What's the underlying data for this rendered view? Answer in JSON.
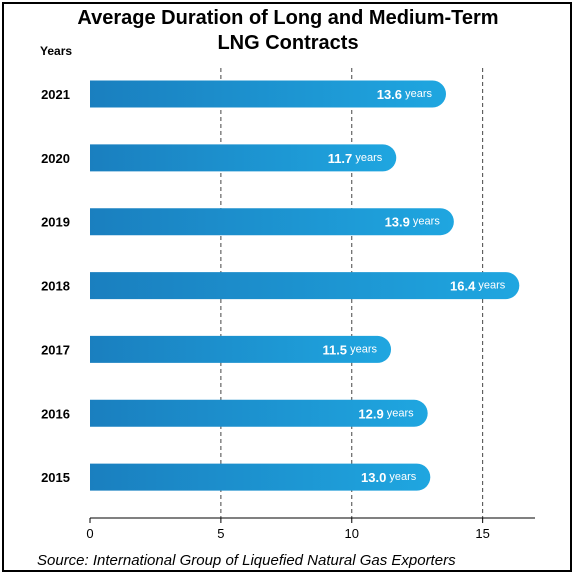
{
  "chart_data": {
    "type": "bar",
    "orientation": "horizontal",
    "title_lines": [
      "Average Duration of Long and Medium-Term",
      "LNG Contracts"
    ],
    "unit_label": "Years",
    "categories": [
      "2021",
      "2020",
      "2019",
      "2018",
      "2017",
      "2016",
      "2015"
    ],
    "values": [
      13.6,
      11.7,
      13.9,
      16.4,
      11.5,
      12.9,
      13.0
    ],
    "value_labels": [
      "13.6",
      "11.7",
      "13.9",
      "16.4",
      "11.5",
      "12.9",
      "13.0"
    ],
    "value_suffix": "years",
    "xlim": [
      0,
      17
    ],
    "x_ticks": [
      0,
      5,
      10,
      15
    ],
    "grid": "vertical dashed",
    "bar_color_start": "#1a7fbf",
    "bar_color_end": "#1fa6e0",
    "source": "Source: International Group of Liquefied Natural Gas Exporters"
  }
}
